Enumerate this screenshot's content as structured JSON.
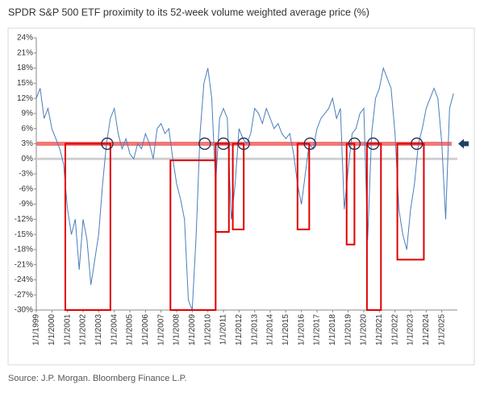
{
  "chart_data": {
    "type": "line",
    "title": "SPDR S&P 500 ETF proximity to its 52-week volume weighted average price (%)",
    "source": "Source: J.P. Morgan. Bloomberg Finance L.P.",
    "color": "#4a7ebb",
    "x": [
      1999,
      1999.25,
      1999.5,
      1999.75,
      2000,
      2000.25,
      2000.5,
      2000.75,
      2001,
      2001.25,
      2001.5,
      2001.75,
      2002,
      2002.25,
      2002.5,
      2002.75,
      2003,
      2003.25,
      2003.5,
      2003.75,
      2004,
      2004.25,
      2004.5,
      2004.75,
      2005,
      2005.25,
      2005.5,
      2005.75,
      2006,
      2006.25,
      2006.5,
      2006.75,
      2007,
      2007.25,
      2007.5,
      2007.75,
      2008,
      2008.25,
      2008.5,
      2008.75,
      2009,
      2009.25,
      2009.5,
      2009.75,
      2010,
      2010.25,
      2010.5,
      2010.75,
      2011,
      2011.25,
      2011.5,
      2011.75,
      2012,
      2012.25,
      2012.5,
      2012.75,
      2013,
      2013.25,
      2013.5,
      2013.75,
      2014,
      2014.25,
      2014.5,
      2014.75,
      2015,
      2015.25,
      2015.5,
      2015.75,
      2016,
      2016.25,
      2016.5,
      2016.75,
      2017,
      2017.25,
      2017.5,
      2017.75,
      2018,
      2018.25,
      2018.5,
      2018.75,
      2019,
      2019.25,
      2019.5,
      2019.75,
      2020,
      2020.25,
      2020.5,
      2020.75,
      2021,
      2021.25,
      2021.5,
      2021.75,
      2022,
      2022.25,
      2022.5,
      2022.75,
      2023,
      2023.25,
      2023.5,
      2023.75,
      2024,
      2024.25,
      2024.5,
      2024.75,
      2025,
      2025.25,
      2025.5,
      2025.75
    ],
    "values": [
      12,
      14,
      8,
      10,
      6,
      4,
      2,
      -1,
      -10,
      -15,
      -12,
      -22,
      -12,
      -16,
      -25,
      -20,
      -15,
      -5,
      3,
      8,
      10,
      5,
      2,
      4,
      1,
      0,
      3,
      2,
      5,
      3,
      0,
      6,
      7,
      5,
      6,
      0,
      -5,
      -8,
      -12,
      -28,
      -30,
      -15,
      5,
      15,
      18,
      12,
      -5,
      8,
      10,
      8,
      -12,
      -5,
      6,
      4,
      3,
      5,
      10,
      9,
      7,
      10,
      8,
      6,
      7,
      5,
      4,
      5,
      1,
      -5,
      -9,
      -3,
      3,
      2,
      6,
      8,
      9,
      10,
      12,
      8,
      10,
      -10,
      -2,
      5,
      6,
      9,
      10,
      -16,
      5,
      12,
      14,
      18,
      16,
      14,
      5,
      -10,
      -15,
      -18,
      -10,
      -5,
      3,
      6,
      10,
      12,
      14,
      12,
      3,
      -12,
      10,
      13
    ],
    "xlim": [
      1999,
      2026
    ],
    "xticks": [
      {
        "value": 1999,
        "label": "1/1/1999"
      },
      {
        "value": 2000,
        "label": "1/1/2000"
      },
      {
        "value": 2001,
        "label": "1/1/2001"
      },
      {
        "value": 2002,
        "label": "1/1/2002"
      },
      {
        "value": 2003,
        "label": "1/1/2003"
      },
      {
        "value": 2004,
        "label": "1/1/2004"
      },
      {
        "value": 2005,
        "label": "1/1/2005"
      },
      {
        "value": 2006,
        "label": "1/1/2006"
      },
      {
        "value": 2007,
        "label": "1/1/2007"
      },
      {
        "value": 2008,
        "label": "1/1/2008"
      },
      {
        "value": 2009,
        "label": "1/1/2009"
      },
      {
        "value": 2010,
        "label": "1/1/2010"
      },
      {
        "value": 2011,
        "label": "1/1/2011"
      },
      {
        "value": 2012,
        "label": "1/1/2012"
      },
      {
        "value": 2013,
        "label": "1/1/2013"
      },
      {
        "value": 2014,
        "label": "1/1/2014"
      },
      {
        "value": 2015,
        "label": "1/1/2015"
      },
      {
        "value": 2016,
        "label": "1/1/2016"
      },
      {
        "value": 2017,
        "label": "1/1/2017"
      },
      {
        "value": 2018,
        "label": "1/1/2018"
      },
      {
        "value": 2019,
        "label": "1/1/2019"
      },
      {
        "value": 2020,
        "label": "1/1/2020"
      },
      {
        "value": 2021,
        "label": "1/1/2021"
      },
      {
        "value": 2022,
        "label": "1/1/2022"
      },
      {
        "value": 2023,
        "label": "1/1/2023"
      },
      {
        "value": 2024,
        "label": "1/1/2024"
      },
      {
        "value": 2025,
        "label": "1/1/2025"
      }
    ],
    "ylim": [
      -30,
      24
    ],
    "yticks": [
      {
        "value": 24,
        "label": "24%"
      },
      {
        "value": 21,
        "label": "21%"
      },
      {
        "value": 18,
        "label": "18%"
      },
      {
        "value": 15,
        "label": "15%"
      },
      {
        "value": 12,
        "label": "12%"
      },
      {
        "value": 9,
        "label": "9%"
      },
      {
        "value": 6,
        "label": "6%"
      },
      {
        "value": 3,
        "label": "3%"
      },
      {
        "value": 0,
        "label": "0%"
      },
      {
        "value": -3,
        "label": "-3%"
      },
      {
        "value": -6,
        "label": "-6%"
      },
      {
        "value": -9,
        "label": "-9%"
      },
      {
        "value": -12,
        "label": "-12%"
      },
      {
        "value": -15,
        "label": "-15%"
      },
      {
        "value": -18,
        "label": "-18%"
      },
      {
        "value": -21,
        "label": "-21%"
      },
      {
        "value": -24,
        "label": "-24%"
      },
      {
        "value": -27,
        "label": "-27%"
      },
      {
        "value": -30,
        "label": "-30%"
      }
    ],
    "reference_line": 3,
    "reference_color": "#f06060",
    "box_color": "#e00000",
    "boxes": [
      {
        "x": [
          2000.86,
          2003.75
        ],
        "y": [
          3,
          -30
        ]
      },
      {
        "x": [
          2007.6,
          2010.5
        ],
        "y": [
          -0.3,
          -30
        ]
      },
      {
        "x": [
          2010.5,
          2011.35
        ],
        "y": [
          3,
          -14.5
        ]
      },
      {
        "x": [
          2011.6,
          2012.3
        ],
        "y": [
          3,
          -14
        ]
      },
      {
        "x": [
          2015.75,
          2016.5
        ],
        "y": [
          3,
          -14
        ]
      },
      {
        "x": [
          2018.9,
          2019.4
        ],
        "y": [
          3,
          -17
        ]
      },
      {
        "x": [
          2020.2,
          2021.1
        ],
        "y": [
          3,
          -30
        ]
      },
      {
        "x": [
          2022.15,
          2023.85
        ],
        "y": [
          3,
          -20
        ]
      }
    ],
    "circles": [
      2003.55,
      2009.8,
      2011.0,
      2012.3,
      2016.55,
      2019.4,
      2020.6,
      2023.4
    ]
  }
}
